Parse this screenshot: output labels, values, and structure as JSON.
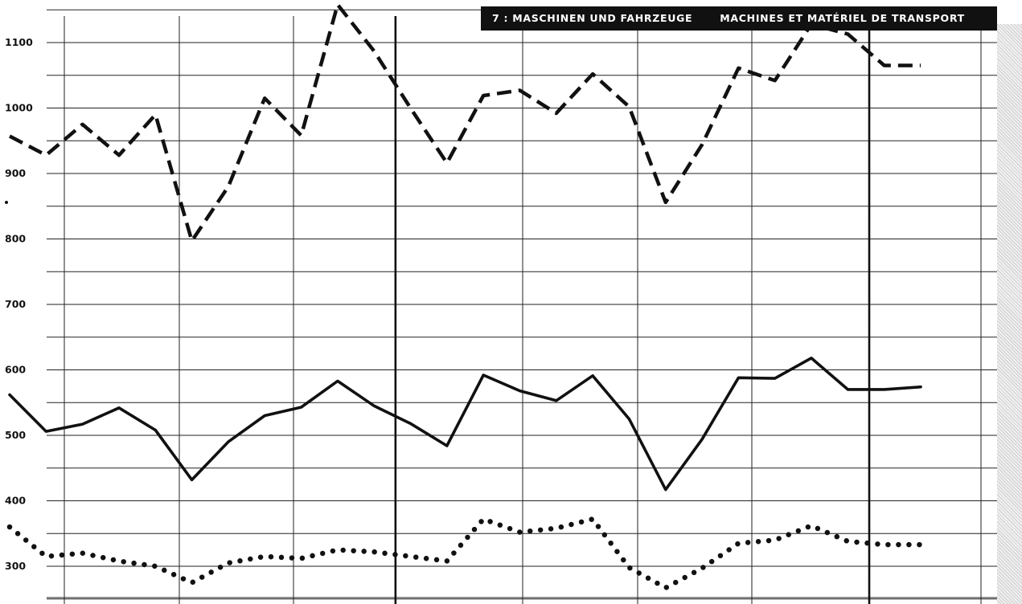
{
  "chart_data": {
    "type": "line",
    "title": "7 : MASCHINEN UND FAHRZEUGE",
    "subtitle": "MACHINES ET MATÉRIEL DE TRANSPORT",
    "xlabel": "",
    "ylabel": "",
    "ylim": [
      250,
      1150
    ],
    "yticks": [
      300,
      400,
      500,
      600,
      700,
      800,
      900,
      1000,
      1100
    ],
    "grid": true,
    "x": [
      1,
      2,
      3,
      4,
      5,
      6,
      7,
      8,
      9,
      10,
      11,
      12,
      13,
      14,
      15,
      16,
      17,
      18,
      19,
      20,
      21,
      22,
      23,
      24,
      25,
      26
    ],
    "period_dividers_after_x": [
      11.5,
      24.5
    ],
    "series": [
      {
        "style": "dashed",
        "values": [
          957,
          928,
          975,
          928,
          990,
          797,
          880,
          1015,
          958,
          1158,
          1087,
          1000,
          916,
          1019,
          1027,
          992,
          1052,
          1002,
          856,
          944,
          1061,
          1042,
          1128,
          1113,
          1065,
          1065
        ]
      },
      {
        "style": "solid",
        "values": [
          562,
          506,
          517,
          542,
          508,
          432,
          490,
          530,
          543,
          583,
          545,
          518,
          484,
          592,
          568,
          553,
          591,
          525,
          417,
          494,
          588,
          587,
          618,
          570,
          570,
          574
        ]
      },
      {
        "style": "dotted",
        "values": [
          360,
          315,
          320,
          308,
          300,
          275,
          305,
          315,
          312,
          325,
          322,
          315,
          308,
          372,
          352,
          358,
          372,
          298,
          267,
          297,
          335,
          340,
          362,
          338,
          333,
          333
        ]
      }
    ]
  }
}
